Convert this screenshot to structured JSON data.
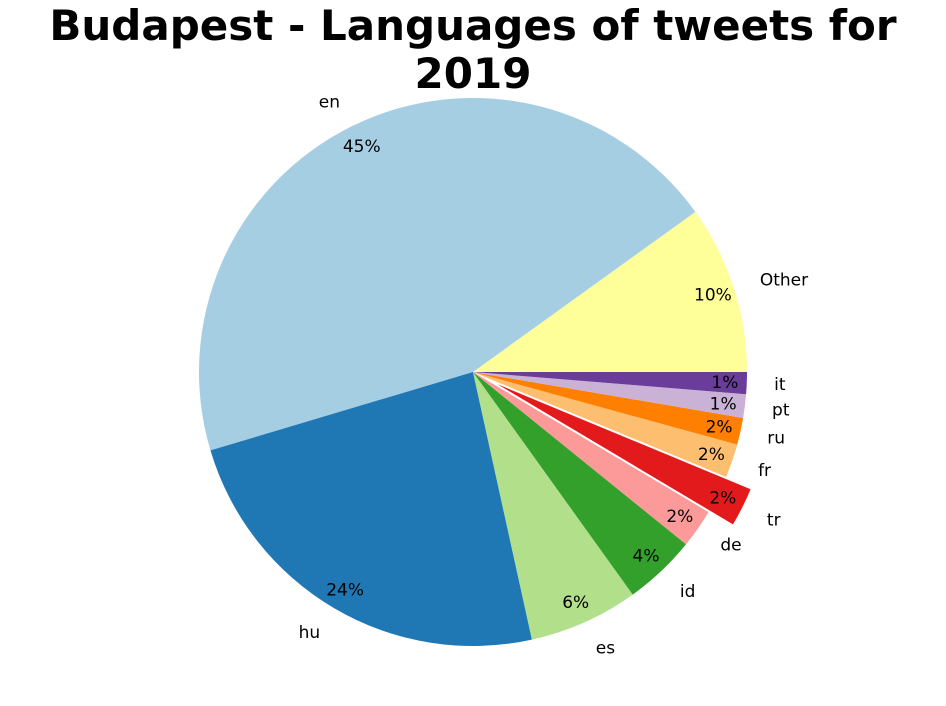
{
  "chart_data": {
    "type": "pie",
    "title": "Budapest - Languages of tweets for 2019",
    "slices": [
      {
        "label": "Other",
        "value": 10,
        "pct_label": "10%",
        "color": "#ffff99",
        "explode": false
      },
      {
        "label": "en",
        "value": 45,
        "pct_label": "45%",
        "color": "#a6cee3",
        "explode": false
      },
      {
        "label": "hu",
        "value": 24,
        "pct_label": "24%",
        "color": "#1f78b4",
        "explode": false
      },
      {
        "label": "es",
        "value": 6.5,
        "pct_label": "6%",
        "color": "#b2df8a",
        "explode": false
      },
      {
        "label": "id",
        "value": 4.3,
        "pct_label": "4%",
        "color": "#33a02c",
        "explode": false
      },
      {
        "label": "de",
        "value": 2.3,
        "pct_label": "2%",
        "color": "#fb9a99",
        "explode": false
      },
      {
        "label": "tr",
        "value": 2.3,
        "pct_label": "2%",
        "color": "#e31a1c",
        "explode": true
      },
      {
        "label": "fr",
        "value": 2.0,
        "pct_label": "2%",
        "color": "#fdbf6f",
        "explode": false
      },
      {
        "label": "ru",
        "value": 1.6,
        "pct_label": "2%",
        "color": "#ff7f00",
        "explode": false
      },
      {
        "label": "pt",
        "value": 1.4,
        "pct_label": "1%",
        "color": "#cab2d6",
        "explode": false
      },
      {
        "label": "it",
        "value": 1.3,
        "pct_label": "1%",
        "color": "#6a3d9a",
        "explode": false
      }
    ]
  }
}
